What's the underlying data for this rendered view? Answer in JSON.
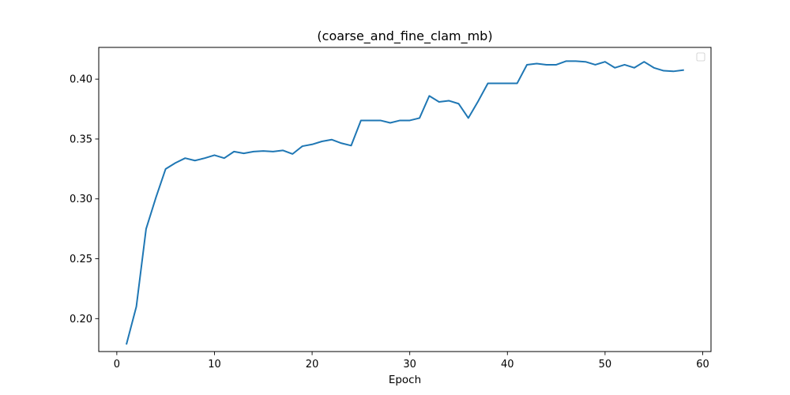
{
  "chart_data": {
    "type": "line",
    "title": "(coarse_and_fine_clam_mb)",
    "xlabel": "Epoch",
    "ylabel": "",
    "xlim": [
      -1.85,
      60.85
    ],
    "ylim": [
      0.1725,
      0.4265
    ],
    "xticks": [
      0,
      10,
      20,
      30,
      40,
      50,
      60
    ],
    "yticks": [
      0.2,
      0.25,
      0.3,
      0.35,
      0.4
    ],
    "xtick_labels": [
      "0",
      "10",
      "20",
      "30",
      "40",
      "50",
      "60"
    ],
    "ytick_labels": [
      "0.20",
      "0.25",
      "0.30",
      "0.35",
      "0.40"
    ],
    "grid": false,
    "legend": {
      "placement": "top-right",
      "entries": []
    },
    "series": [
      {
        "color": "#1f77b4",
        "x": [
          1,
          2,
          3,
          4,
          5,
          6,
          7,
          8,
          9,
          10,
          11,
          12,
          13,
          14,
          15,
          16,
          17,
          18,
          19,
          20,
          21,
          22,
          23,
          24,
          25,
          26,
          27,
          28,
          29,
          30,
          31,
          32,
          33,
          34,
          35,
          36,
          37,
          38,
          39,
          40,
          41,
          42,
          43,
          44,
          45,
          46,
          47,
          48,
          49,
          50,
          51,
          52,
          53,
          54,
          55,
          56,
          57,
          58
        ],
        "values": [
          0.179,
          0.21,
          0.275,
          0.301,
          0.325,
          0.33,
          0.334,
          0.332,
          0.334,
          0.3365,
          0.334,
          0.3395,
          0.338,
          0.3395,
          0.34,
          0.3395,
          0.3405,
          0.3375,
          0.344,
          0.3455,
          0.348,
          0.3495,
          0.3465,
          0.3445,
          0.3655,
          0.3655,
          0.3655,
          0.3635,
          0.3655,
          0.3655,
          0.3675,
          0.386,
          0.381,
          0.382,
          0.3795,
          0.3675,
          0.3815,
          0.3965,
          0.3965,
          0.3965,
          0.3965,
          0.412,
          0.413,
          0.412,
          0.412,
          0.415,
          0.415,
          0.4145,
          0.412,
          0.4145,
          0.4095,
          0.412,
          0.4095,
          0.4145,
          0.4095,
          0.407,
          0.4065,
          0.4075
        ]
      }
    ]
  }
}
